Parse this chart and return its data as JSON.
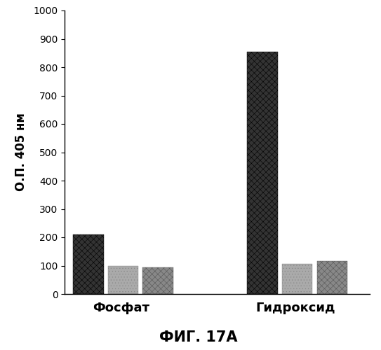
{
  "groups": [
    "Фосфат",
    "Гидроксид"
  ],
  "group_positions": [
    1.0,
    3.0
  ],
  "bar_width": 0.35,
  "bars": [
    {
      "values": [
        210,
        100,
        95
      ],
      "offsets": [
        -0.38,
        0.02,
        0.42
      ]
    },
    {
      "values": [
        855,
        105,
        115
      ],
      "offsets": [
        -0.38,
        0.02,
        0.42
      ]
    }
  ],
  "ylim": [
    0,
    1000
  ],
  "yticks": [
    0,
    100,
    200,
    300,
    400,
    500,
    600,
    700,
    800,
    900,
    1000
  ],
  "ylabel": "О.П. 405 нм",
  "figure_title": "ФИГ. 17А",
  "background_color": "#ffffff",
  "bar_styles": [
    {
      "facecolor": "#333333",
      "hatch": "xxxx",
      "edgecolor": "#000000",
      "linewidth": 0.3
    },
    {
      "facecolor": "#aaaaaa",
      "hatch": "....",
      "edgecolor": "#888888",
      "linewidth": 0.3
    },
    {
      "facecolor": "#888888",
      "hatch": "xxxx",
      "edgecolor": "#555555",
      "linewidth": 0.3
    }
  ]
}
